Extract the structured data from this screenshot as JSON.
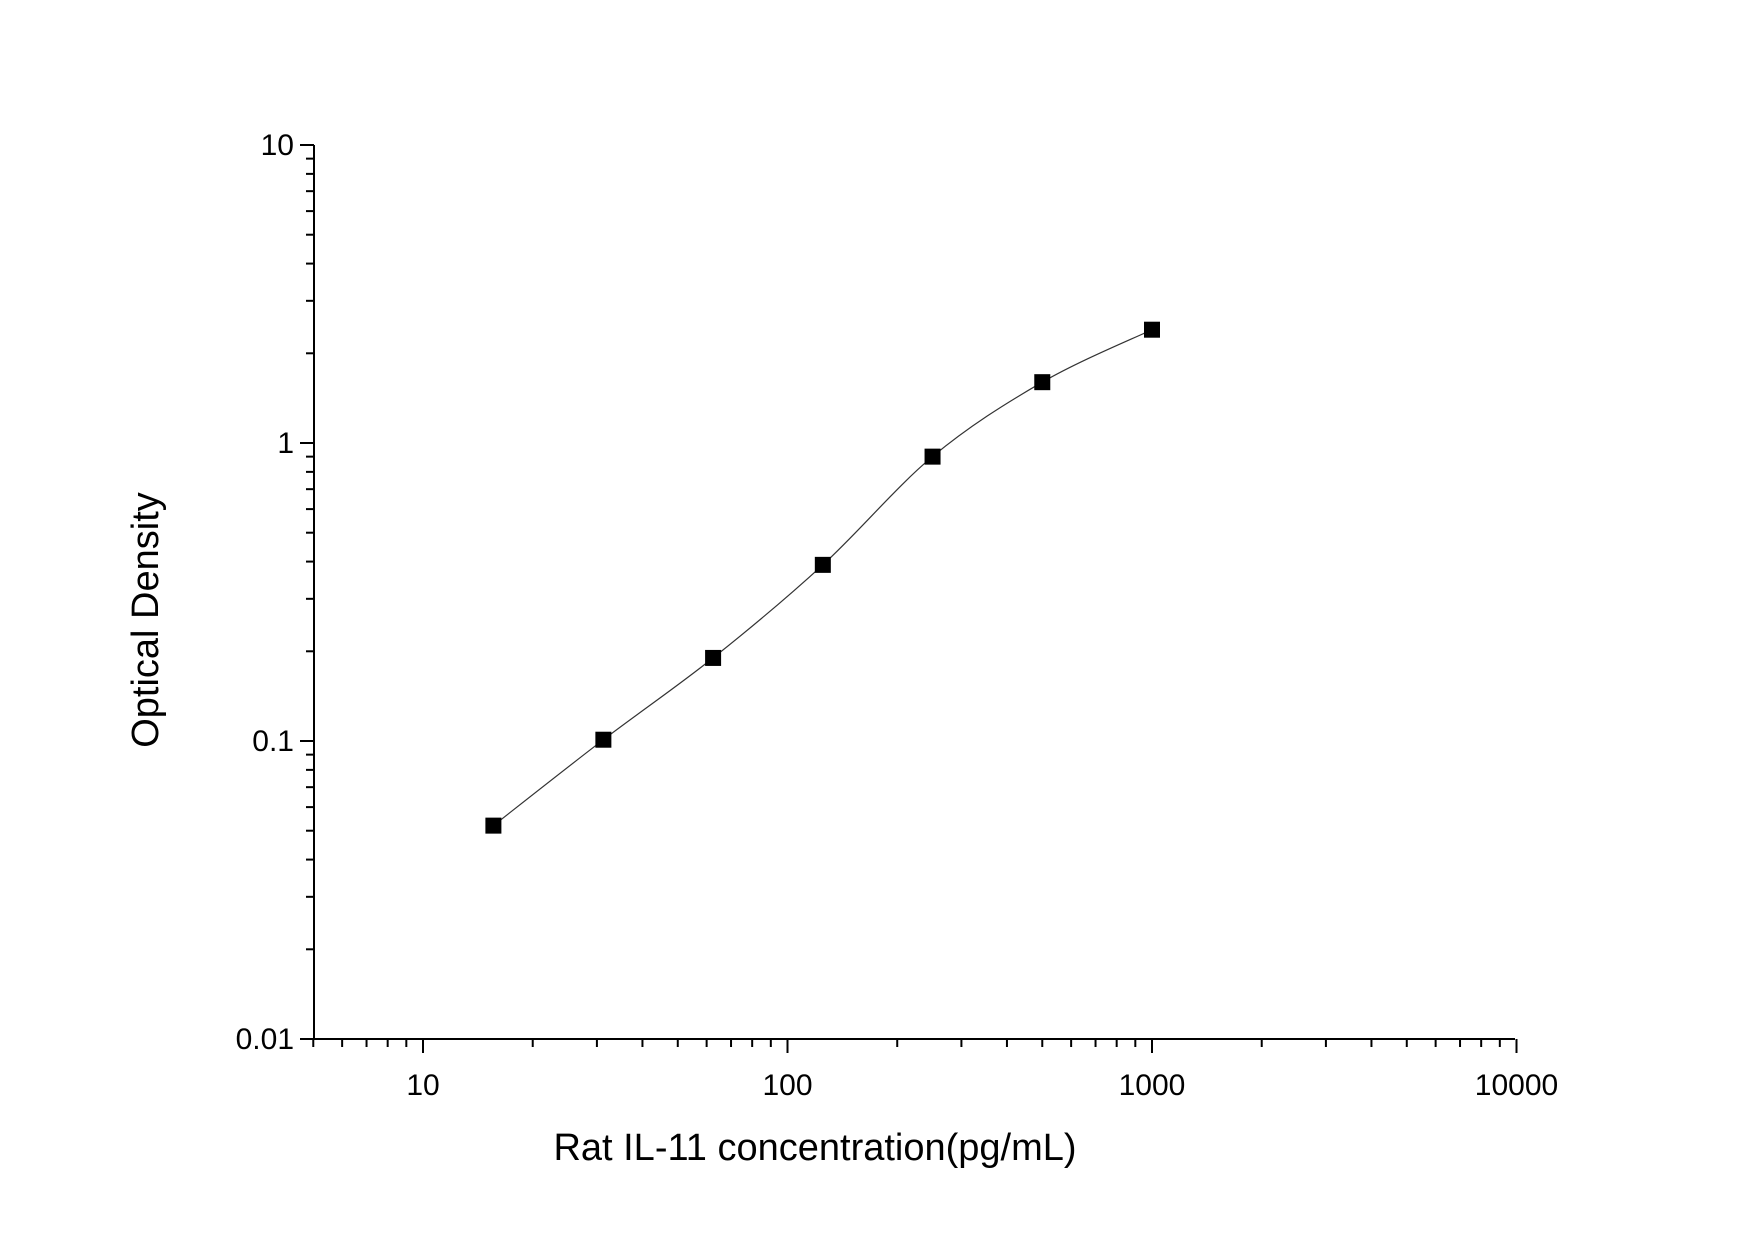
{
  "chart_data": {
    "type": "scatter",
    "title": "",
    "xlabel": "Rat IL-11 concentration(pg/mL)",
    "ylabel": "Optical Density",
    "xscale": "log",
    "yscale": "log",
    "xlim": [
      5,
      10000
    ],
    "ylim": [
      0.01,
      10
    ],
    "grid": false,
    "legend": "none",
    "x_tick_labels": [
      "10",
      "100",
      "1000",
      "10000"
    ],
    "y_tick_labels": [
      "0.01",
      "0.1",
      "1",
      "10"
    ],
    "series": [
      {
        "marker": "square",
        "color": "#000000",
        "fit_line": "smooth",
        "points": [
          {
            "x": 15.6,
            "y": 0.052
          },
          {
            "x": 31.25,
            "y": 0.101
          },
          {
            "x": 62.5,
            "y": 0.19
          },
          {
            "x": 125,
            "y": 0.39
          },
          {
            "x": 250,
            "y": 0.9
          },
          {
            "x": 500,
            "y": 1.6
          },
          {
            "x": 1000,
            "y": 2.4
          }
        ]
      }
    ]
  }
}
